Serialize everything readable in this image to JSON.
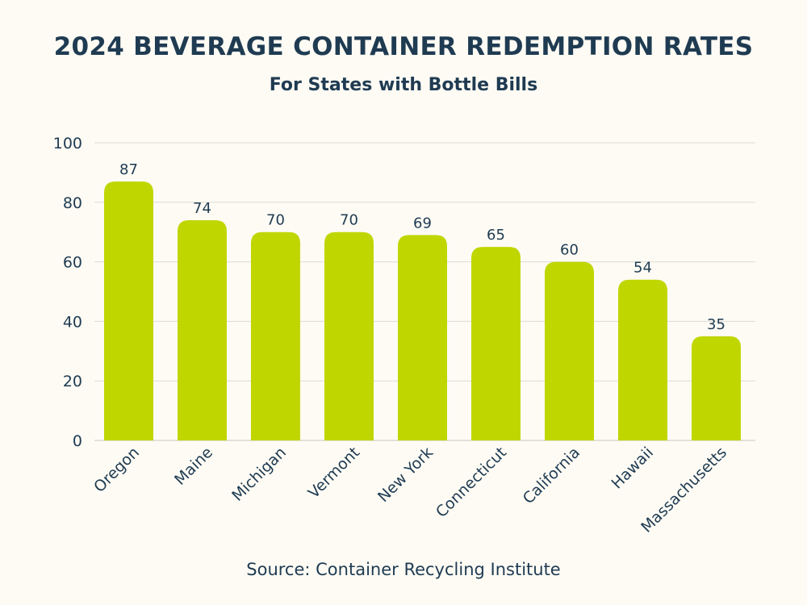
{
  "chart_data": {
    "type": "bar",
    "title": "2024 BEVERAGE CONTAINER REDEMPTION RATES",
    "subtitle": "For States with Bottle Bills",
    "source": "Source: Container Recycling Institute",
    "categories": [
      "Oregon",
      "Maine",
      "Michigan",
      "Vermont",
      "New York",
      "Connecticut",
      "California",
      "Hawaii",
      "Massachusetts"
    ],
    "values": [
      87,
      74,
      70,
      70,
      69,
      65,
      60,
      54,
      35
    ],
    "ylim": [
      0,
      100
    ],
    "yticks": [
      0,
      20,
      40,
      60,
      80,
      100
    ],
    "xlabel": "",
    "ylabel": "",
    "grid": true,
    "colors": {
      "bar": "#c0d600",
      "grid": "#dcdcd4",
      "text": "#1f3b52",
      "background": "#fdfbf4"
    }
  }
}
